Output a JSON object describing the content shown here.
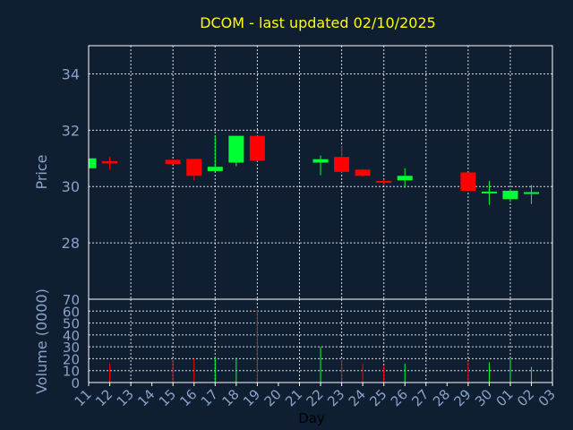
{
  "chart_data": [
    {
      "type": "candlestick",
      "title": "DCOM - last updated 02/10/2025",
      "ylabel": "Price",
      "ylim": [
        26.0,
        35.0
      ],
      "yticks": [
        28,
        30,
        32,
        34
      ],
      "candles": [
        {
          "day": "11",
          "open": 30.65,
          "high": 31.0,
          "low": 30.65,
          "close": 31.0
        },
        {
          "day": "12",
          "open": 30.9,
          "high": 31.05,
          "low": 30.6,
          "close": 30.82
        },
        {
          "day": "15",
          "open": 30.95,
          "high": 30.95,
          "low": 30.78,
          "close": 30.8
        },
        {
          "day": "16",
          "open": 30.98,
          "high": 30.98,
          "low": 30.22,
          "close": 30.38
        },
        {
          "day": "17",
          "open": 30.55,
          "high": 31.8,
          "low": 30.55,
          "close": 30.7
        },
        {
          "day": "18",
          "open": 30.85,
          "high": 31.8,
          "low": 30.72,
          "close": 31.8
        },
        {
          "day": "19",
          "open": 31.8,
          "high": 31.8,
          "low": 30.9,
          "close": 30.92
        },
        {
          "day": "22",
          "open": 30.85,
          "high": 31.1,
          "low": 30.4,
          "close": 30.97
        },
        {
          "day": "23",
          "open": 31.05,
          "high": 31.45,
          "low": 30.5,
          "close": 30.52
        },
        {
          "day": "24",
          "open": 30.6,
          "high": 30.62,
          "low": 30.35,
          "close": 30.38
        },
        {
          "day": "25",
          "open": 30.2,
          "high": 30.25,
          "low": 30.05,
          "close": 30.18
        },
        {
          "day": "26",
          "open": 30.22,
          "high": 30.65,
          "low": 29.95,
          "close": 30.38
        },
        {
          "day": "29",
          "open": 30.5,
          "high": 30.5,
          "low": 29.85,
          "close": 29.85
        },
        {
          "day": "30",
          "open": 29.78,
          "high": 30.2,
          "low": 29.35,
          "close": 29.82
        },
        {
          "day": "01",
          "open": 29.55,
          "high": 29.9,
          "low": 29.45,
          "close": 29.85
        },
        {
          "day": "02",
          "open": 29.8,
          "high": 30.05,
          "low": 29.38,
          "close": 29.8
        }
      ]
    },
    {
      "type": "bar",
      "ylabel": "Volume (0000)",
      "xlabel": "Day",
      "ylim": [
        0,
        70
      ],
      "yticks": [
        0,
        10,
        20,
        30,
        40,
        50,
        60,
        70
      ],
      "bars": [
        {
          "day": "12",
          "value": 16,
          "direction": "down"
        },
        {
          "day": "15",
          "value": 19,
          "direction": "down"
        },
        {
          "day": "16",
          "value": 20,
          "direction": "down"
        },
        {
          "day": "17",
          "value": 21,
          "direction": "up"
        },
        {
          "day": "18",
          "value": 21,
          "direction": "up"
        },
        {
          "day": "19",
          "value": 61,
          "direction": "down"
        },
        {
          "day": "22",
          "value": 30,
          "direction": "up"
        },
        {
          "day": "23",
          "value": 19,
          "direction": "down"
        },
        {
          "day": "24",
          "value": 16,
          "direction": "down"
        },
        {
          "day": "25",
          "value": 14,
          "direction": "down"
        },
        {
          "day": "26",
          "value": 16,
          "direction": "up"
        },
        {
          "day": "29",
          "value": 18,
          "direction": "down"
        },
        {
          "day": "30",
          "value": 17,
          "direction": "up"
        },
        {
          "day": "01",
          "value": 20,
          "direction": "up"
        },
        {
          "day": "02",
          "value": 13,
          "direction": "up"
        }
      ]
    }
  ],
  "x_ticks": [
    "11",
    "12",
    "13",
    "14",
    "15",
    "16",
    "17",
    "18",
    "19",
    "20",
    "21",
    "22",
    "23",
    "24",
    "25",
    "26",
    "27",
    "28",
    "29",
    "30",
    "01",
    "02",
    "03"
  ],
  "colors": {
    "background": "#0f1f31",
    "frame": "#ffffff",
    "up": "#00ff33",
    "down": "#ff0000",
    "title": "#ffff00",
    "tick": "#8aa2c8",
    "xlabel": "#000000"
  }
}
